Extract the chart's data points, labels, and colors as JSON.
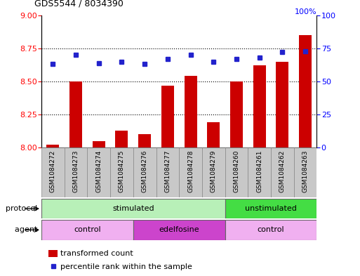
{
  "title": "GDS5544 / 8034390",
  "samples": [
    "GSM1084272",
    "GSM1084273",
    "GSM1084274",
    "GSM1084275",
    "GSM1084276",
    "GSM1084277",
    "GSM1084278",
    "GSM1084279",
    "GSM1084260",
    "GSM1084261",
    "GSM1084262",
    "GSM1084263"
  ],
  "transformed_count": [
    8.02,
    8.5,
    8.05,
    8.13,
    8.1,
    8.47,
    8.54,
    8.19,
    8.5,
    8.62,
    8.65,
    8.85
  ],
  "percentile_rank": [
    63,
    70,
    64,
    65,
    63,
    67,
    70,
    65,
    67,
    68,
    72,
    73
  ],
  "ylim_left": [
    8.0,
    9.0
  ],
  "ylim_right": [
    0,
    100
  ],
  "yticks_left": [
    8.0,
    8.25,
    8.5,
    8.75,
    9.0
  ],
  "yticks_right": [
    0,
    25,
    50,
    75,
    100
  ],
  "bar_color": "#cc0000",
  "dot_color": "#2222cc",
  "bar_bottom": 8.0,
  "protocol_labels": [
    "stimulated",
    "unstimulated"
  ],
  "protocol_color_stim": "#b8f0b8",
  "protocol_color_unstim": "#44dd44",
  "agent_labels": [
    "control",
    "edelfosine",
    "control"
  ],
  "agent_color_control": "#f0b0f0",
  "agent_color_edelfosine": "#cc44cc",
  "legend_bar_label": "transformed count",
  "legend_dot_label": "percentile rank within the sample",
  "label_protocol": "protocol",
  "label_agent": "agent",
  "xtick_bg": "#c8c8c8",
  "hundred_pct_label": "100%"
}
